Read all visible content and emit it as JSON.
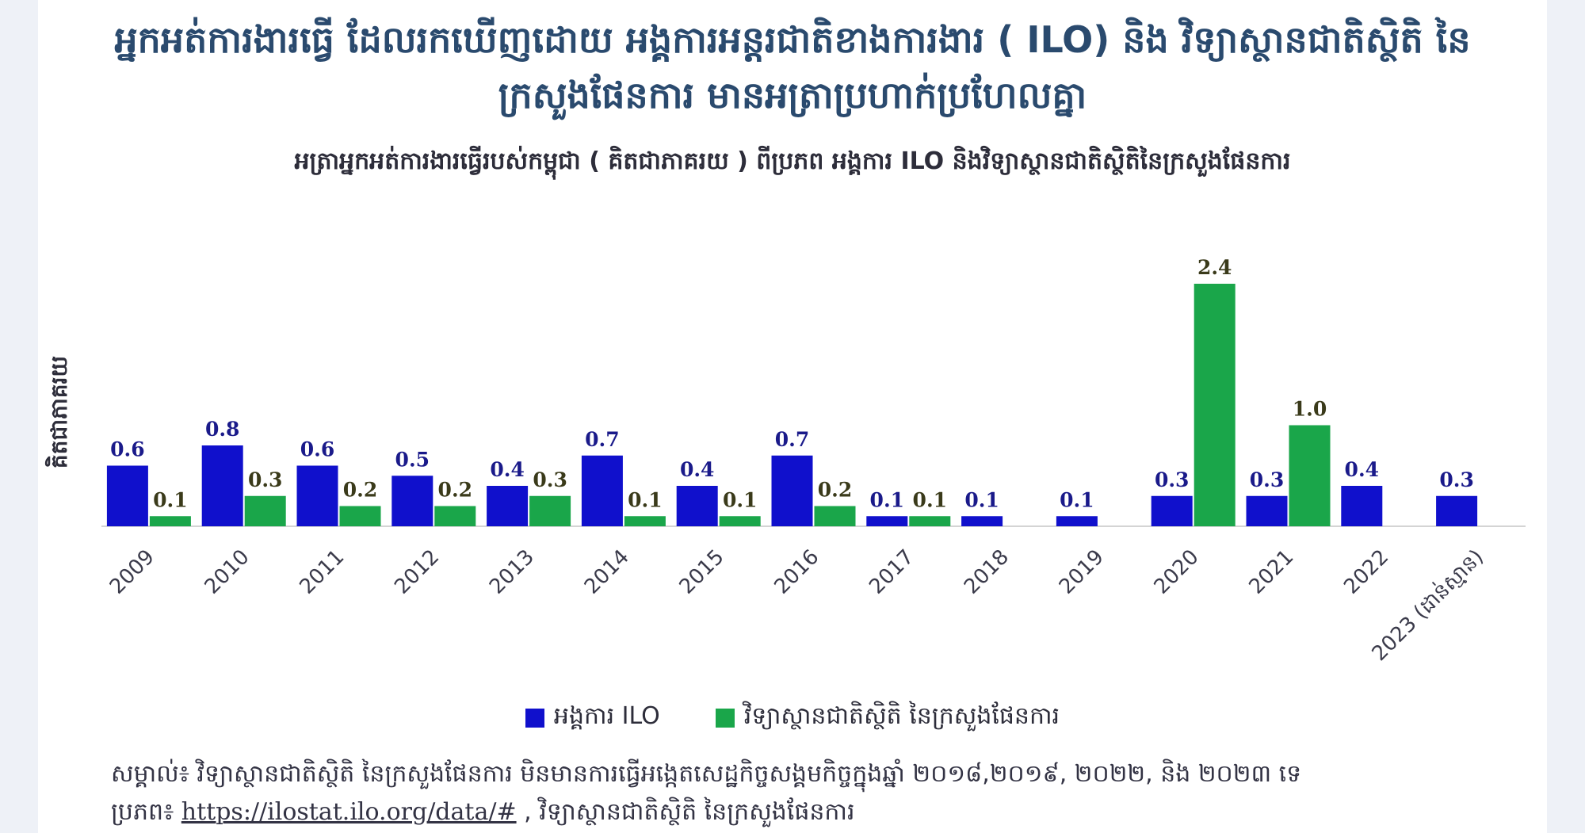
{
  "title_line1": "អ្នកអត់ការងារធ្វើ ដែលរកឃើញដោយ អង្គការអន្តរជាតិខាងការងារ ( ILO) និង វិទ្យាស្ថានជាតិស្ថិតិ នៃ",
  "title_line2": "ក្រសួងផែនការ មានអត្រាប្រហាក់ប្រហែលគ្នា",
  "chart_data": {
    "type": "bar",
    "title": "អត្រាអ្នកអត់ការងារធ្វើរបស់កម្ពុជា ( គិតជាភាគរយ ) ពីប្រភព អង្គការ ILO និងវិទ្យាស្ថានជាតិស្ថិតិនៃក្រសួងផែនការ",
    "xlabel": "",
    "ylabel": "គិតជាភាគរយ",
    "ylim": [
      0,
      2.4
    ],
    "grid": false,
    "legend_position": "bottom-center",
    "categories": [
      "2009",
      "2010",
      "2011",
      "2012",
      "2013",
      "2014",
      "2015",
      "2016",
      "2017",
      "2018",
      "2019",
      "2020",
      "2021",
      "2022",
      "2023 (ដាន់ស្មាន)"
    ],
    "series": [
      {
        "name": "អង្គការ ILO",
        "color": "#1010cc",
        "values": [
          0.6,
          0.8,
          0.6,
          0.5,
          0.4,
          0.7,
          0.4,
          0.7,
          0.1,
          0.1,
          0.1,
          0.3,
          0.3,
          0.4,
          0.3
        ],
        "labels": [
          "0.6",
          "0.8",
          "0.6",
          "0.5",
          "0.4",
          "0.7",
          "0.4",
          "0.7",
          "0.1",
          "0.1",
          "0.1",
          "0.3",
          "0.3",
          "0.4",
          "0.3"
        ]
      },
      {
        "name": "វិទ្យាស្ថានជាតិស្ថិតិ នៃក្រសួងផែនការ",
        "color": "#1aa64a",
        "values": [
          0.1,
          0.3,
          0.2,
          0.2,
          0.3,
          0.1,
          0.1,
          0.2,
          0.1,
          null,
          null,
          2.4,
          1.0,
          null,
          null
        ],
        "labels": [
          "0.1",
          "0.3",
          "0.2",
          "0.2",
          "0.3",
          "0.1",
          "0.1",
          "0.2",
          "0.1",
          null,
          null,
          "2.4",
          "1.0",
          null,
          null
        ]
      }
    ]
  },
  "note": {
    "line1": "សម្គាល់៖ វិទ្យាស្ថានជាតិស្ថិតិ នៃក្រសួងផែនការ មិនមានការធ្វើអង្កេតសេដ្ឋកិច្ចសង្គមកិច្ចក្នុងឆ្នាំ ២០១៨,២០១៩, ២០២២, និង ២០២៣ ទេ",
    "source_prefix": "ប្រភព៖ ",
    "source_link": "https://ilostat.ilo.org/data/#",
    "source_suffix": " , វិទ្យាស្ថានជាតិស្ថិតិ នៃក្រសួងផែនការ"
  }
}
